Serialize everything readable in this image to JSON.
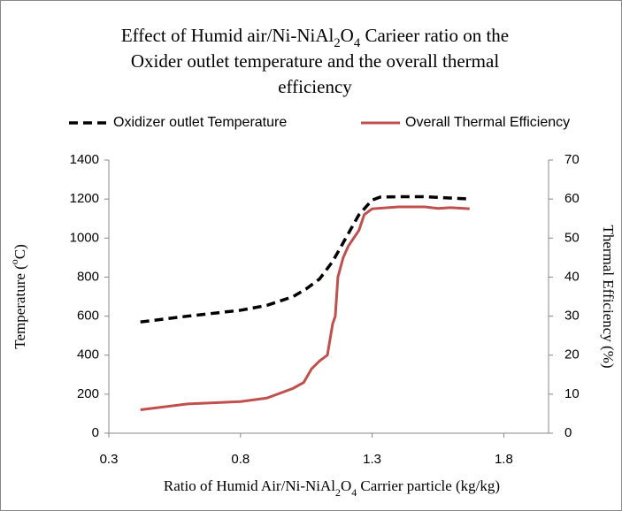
{
  "chart_data": {
    "type": "line",
    "title": [
      "Effect of Humid air/Ni-NiAl2O4 Carieer ratio on the",
      "Oxider outlet temperature and the overall thermal",
      "efficiency"
    ],
    "xlabel": "Ratio of Humid Air/Ni-NiAl2O4 Carrier particle (kg/kg)",
    "ylabel": "Temperature (oC)",
    "y2label": "Thermal Efficiency (%)",
    "xlim": [
      0.3,
      1.97
    ],
    "xticks": [
      0.3,
      0.8,
      1.3,
      1.8
    ],
    "ylim": [
      0,
      1400
    ],
    "yticks": [
      0,
      200,
      400,
      600,
      800,
      1000,
      1200,
      1400
    ],
    "y2lim": [
      0,
      70
    ],
    "y2ticks": [
      0,
      10,
      20,
      30,
      40,
      50,
      60,
      70
    ],
    "legend": "top",
    "series": [
      {
        "name": "Oxidizer outlet Temperature",
        "color": "#000000",
        "dash": true,
        "x": [
          0.42,
          0.6,
          0.8,
          0.9,
          1.0,
          1.05,
          1.1,
          1.15,
          1.2,
          1.25,
          1.3,
          1.33,
          1.4,
          1.5,
          1.6,
          1.67
        ],
        "values": [
          570,
          600,
          630,
          655,
          700,
          740,
          790,
          880,
          1000,
          1120,
          1195,
          1210,
          1212,
          1212,
          1205,
          1200
        ]
      },
      {
        "name": "Overall Thermal Efficiency",
        "color": "#c0504d",
        "dash": false,
        "axis": "y2",
        "x": [
          0.42,
          0.6,
          0.8,
          0.9,
          1.0,
          1.04,
          1.07,
          1.1,
          1.13,
          1.15,
          1.16,
          1.17,
          1.19,
          1.21,
          1.25,
          1.27,
          1.3,
          1.4,
          1.5,
          1.55,
          1.6,
          1.67
        ],
        "values": [
          6,
          7.5,
          8.1,
          9,
          11.5,
          13,
          16.5,
          18.5,
          20,
          28,
          30,
          40,
          45,
          48,
          52,
          56,
          57.5,
          58,
          58,
          57.6,
          57.8,
          57.5
        ]
      }
    ]
  }
}
